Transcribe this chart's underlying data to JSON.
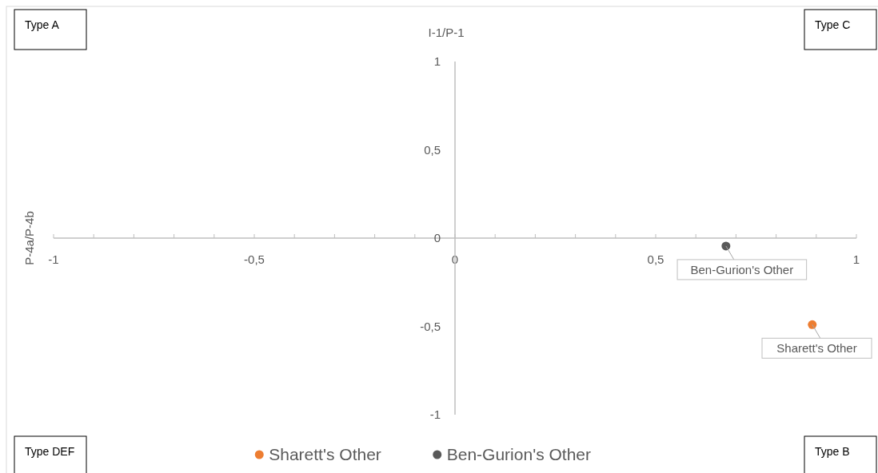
{
  "chart_data": {
    "type": "scatter",
    "title": "I-1/P-1",
    "ylabel": "P-4a/P-4b",
    "xlim": [
      -1,
      1
    ],
    "ylim": [
      -1,
      1
    ],
    "xticks": [
      {
        "value": -1,
        "label": "-1"
      },
      {
        "value": -0.9,
        "label": null
      },
      {
        "value": -0.8,
        "label": null
      },
      {
        "value": -0.7,
        "label": null
      },
      {
        "value": -0.6,
        "label": null
      },
      {
        "value": -0.5,
        "label": "-0,5"
      },
      {
        "value": -0.4,
        "label": null
      },
      {
        "value": -0.3,
        "label": null
      },
      {
        "value": -0.2,
        "label": null
      },
      {
        "value": -0.1,
        "label": null
      },
      {
        "value": 0,
        "label": "0"
      },
      {
        "value": 0.1,
        "label": null
      },
      {
        "value": 0.2,
        "label": null
      },
      {
        "value": 0.3,
        "label": null
      },
      {
        "value": 0.4,
        "label": null
      },
      {
        "value": 0.5,
        "label": "0,5"
      },
      {
        "value": 0.6,
        "label": null
      },
      {
        "value": 0.7,
        "label": null
      },
      {
        "value": 0.8,
        "label": null
      },
      {
        "value": 0.9,
        "label": null
      },
      {
        "value": 1,
        "label": "1"
      }
    ],
    "yticks": [
      {
        "value": -1,
        "label": "-1"
      },
      {
        "value": -0.5,
        "label": "-0,5"
      },
      {
        "value": 0,
        "label": "0"
      },
      {
        "value": 0.5,
        "label": "0,5"
      },
      {
        "value": 1,
        "label": "1"
      }
    ],
    "series": [
      {
        "name": "Sharett's Other",
        "color": "#ed7d31",
        "x": [
          0.89
        ],
        "values": [
          -0.49
        ]
      },
      {
        "name": "Ben-Gurion's Other",
        "color": "#595959",
        "x": [
          0.675
        ],
        "values": [
          -0.045
        ]
      }
    ],
    "annotations": [
      "Type A",
      "Type C",
      "Type DEF",
      "Type B",
      {
        "text": "Ben-Gurion's Other",
        "x": 0.675,
        "y": -0.045
      },
      {
        "text": "Sharett's Other",
        "x": 0.89,
        "y": -0.49
      }
    ],
    "marker": "circle",
    "grid": false,
    "legend": "bottom"
  }
}
